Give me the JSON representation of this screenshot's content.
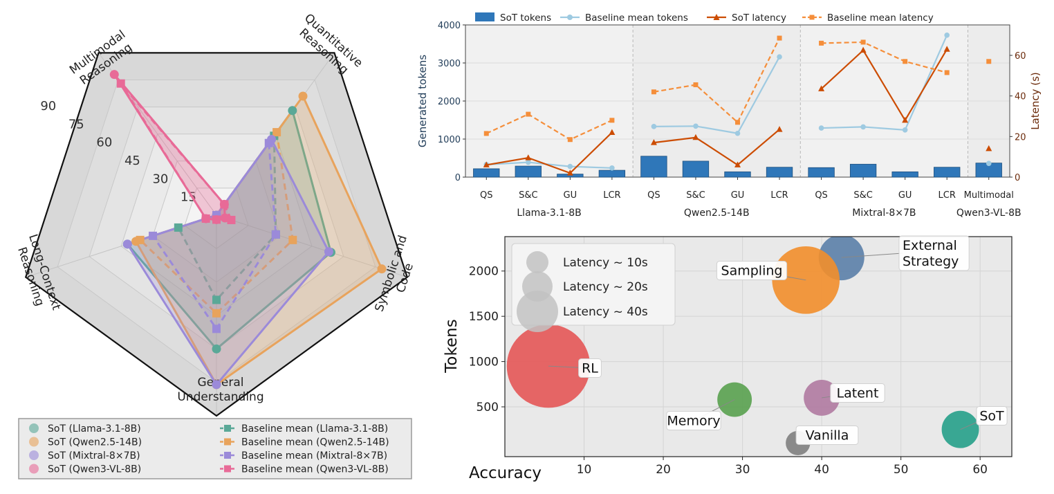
{
  "chart_data": [
    {
      "type": "radar",
      "axes": [
        "Quantitative Reasoning",
        "Symbolic and Code",
        "General Understanding",
        "Long-Context Reasoning",
        "Multimodal Reasoning"
      ],
      "axis_label_lines": [
        [
          "Quantitative",
          "Reasoning"
        ],
        [
          "Symbolic and",
          "Code"
        ],
        [
          "General",
          "Understanding"
        ],
        [
          "Long-Context",
          "Reasoning"
        ],
        [
          "Multimodal",
          "Reasoning"
        ]
      ],
      "rlim": [
        0,
        90
      ],
      "rticks": [
        15,
        30,
        45,
        60,
        75,
        90
      ],
      "series": [
        {
          "name": "SoT (Llama-3.1-8B)",
          "style": "solid",
          "marker": "circle",
          "color": "#5aa897",
          "values": [
            58,
            54,
            60,
            42,
            null
          ]
        },
        {
          "name": "Baseline mean (Llama-3.1-8B)",
          "style": "dashed",
          "marker": "square",
          "color": "#5aa897",
          "values": [
            44,
            28,
            38,
            18,
            null
          ]
        },
        {
          "name": "SoT (Qwen2.5-14B)",
          "style": "solid",
          "marker": "circle",
          "color": "#e8a35c",
          "values": [
            66,
            78,
            76,
            38,
            null
          ]
        },
        {
          "name": "Baseline mean (Qwen2.5-14B)",
          "style": "dashed",
          "marker": "square",
          "color": "#e8a35c",
          "values": [
            46,
            36,
            44,
            36,
            null
          ]
        },
        {
          "name": "SoT (Mixtral-8×7B)",
          "style": "solid",
          "marker": "circle",
          "color": "#9b8ad9",
          "values": [
            42,
            53,
            76,
            42,
            null
          ]
        },
        {
          "name": "Baseline mean (Mixtral-8×7B)",
          "style": "dashed",
          "marker": "square",
          "color": "#9b8ad9",
          "values": [
            40,
            28,
            51,
            30,
            null
          ]
        },
        {
          "name": "SoT (Qwen3-VL-8B)",
          "style": "solid",
          "marker": "circle",
          "color": "#e86a97",
          "values": [
            6,
            4,
            2,
            5,
            78
          ]
        },
        {
          "name": "Baseline mean (Qwen3-VL-8B)",
          "style": "dashed",
          "marker": "square",
          "color": "#e86a97",
          "values": [
            6,
            7,
            2,
            5,
            73
          ]
        }
      ]
    },
    {
      "type": "bar+line",
      "categories": [
        "QS",
        "S&C",
        "GU",
        "LCR",
        "QS",
        "S&C",
        "GU",
        "LCR",
        "QS",
        "S&C",
        "GU",
        "LCR",
        "Multimodal"
      ],
      "groups": [
        "Llama-3.1-8B",
        "Qwen2.5-14B",
        "Mixtral-8×7B",
        "Qwen3-VL-8B"
      ],
      "group_sizes": [
        4,
        4,
        4,
        1
      ],
      "ylabel": "Generated tokens",
      "ylim": [
        0,
        4000
      ],
      "yticks": [
        0,
        1000,
        2000,
        3000,
        4000
      ],
      "y2label": "Latency (s)",
      "y2lim": [
        0,
        75
      ],
      "y2ticks": [
        0,
        20,
        40,
        60
      ],
      "series": [
        {
          "name": "SoT tokens",
          "type": "bar",
          "axis": "left",
          "color": "#2f77b9",
          "values": [
            220,
            290,
            80,
            180,
            550,
            420,
            140,
            260,
            250,
            340,
            140,
            260,
            370
          ]
        },
        {
          "name": "Baseline mean tokens",
          "type": "line",
          "axis": "left",
          "color": "#9ecae1",
          "values": [
            330,
            390,
            280,
            240,
            1330,
            1340,
            1150,
            3160,
            1290,
            1320,
            1240,
            3730,
            360
          ]
        },
        {
          "name": "SoT latency",
          "type": "line",
          "axis": "right",
          "color": "#cc4c02",
          "values": [
            6,
            9.5,
            2,
            22,
            17,
            19.5,
            6,
            23.5,
            43.5,
            62.5,
            28,
            63,
            14
          ]
        },
        {
          "name": "Baseline mean latency",
          "type": "line-dashed",
          "axis": "right",
          "color": "#f58e3a",
          "values": [
            21.5,
            31,
            18.5,
            28,
            42,
            45.5,
            27,
            68.5,
            66,
            66.5,
            57,
            51.5,
            57
          ]
        }
      ],
      "legend": "top"
    },
    {
      "type": "bubble",
      "xlabel": "Accuracy",
      "ylabel": "Tokens",
      "xlim": [
        0,
        64
      ],
      "ylim": [
        -50,
        2380
      ],
      "xticks": [
        10,
        20,
        30,
        40,
        50,
        60
      ],
      "yticks": [
        500,
        1000,
        1500,
        2000
      ],
      "size_legend": [
        {
          "label": "Latency ~ 10s",
          "latency": 10
        },
        {
          "label": "Latency ~ 20s",
          "latency": 20
        },
        {
          "label": "Latency ~ 40s",
          "latency": 40
        }
      ],
      "points": [
        {
          "label": "External Strategy",
          "label_lines": [
            "External",
            "Strategy"
          ],
          "x": 42.5,
          "y": 2150,
          "latency": 21,
          "color": "#5b7fa8"
        },
        {
          "label": "Sampling",
          "label_lines": [
            "Sampling"
          ],
          "x": 38,
          "y": 1900,
          "latency": 46,
          "color": "#f28e2b"
        },
        {
          "label": "RL",
          "label_lines": [
            "RL"
          ],
          "x": 5.5,
          "y": 950,
          "latency": 70,
          "color": "#e45756"
        },
        {
          "label": "Memory",
          "label_lines": [
            "Memory"
          ],
          "x": 29,
          "y": 580,
          "latency": 12,
          "color": "#59a14f"
        },
        {
          "label": "Latent",
          "label_lines": [
            "Latent"
          ],
          "x": 40,
          "y": 600,
          "latency": 13,
          "color": "#b07aa1"
        },
        {
          "label": "Vanilla",
          "label_lines": [
            "Vanilla"
          ],
          "x": 37,
          "y": 100,
          "latency": 6,
          "color": "#7f7f7f"
        },
        {
          "label": "SoT",
          "label_lines": [
            "SoT"
          ],
          "x": 57.5,
          "y": 250,
          "latency": 14,
          "color": "#26a08a"
        }
      ]
    }
  ]
}
